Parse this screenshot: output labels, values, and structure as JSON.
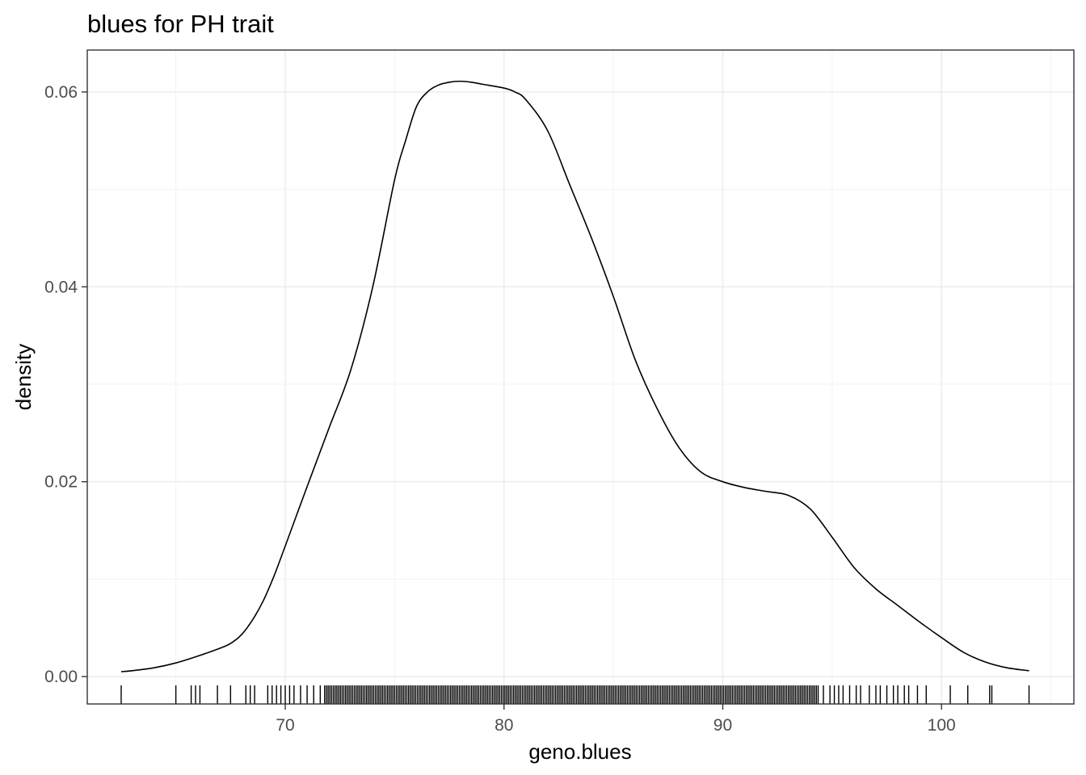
{
  "chart_data": {
    "type": "density",
    "title": "blues for PH trait",
    "xlabel": "geno.blues",
    "ylabel": "density",
    "xlim": [
      60.95,
      106.05
    ],
    "ylim": [
      -0.00281,
      0.0643
    ],
    "x_ticks": [
      70,
      80,
      90,
      100
    ],
    "x_tick_labels": [
      "70",
      "80",
      "90",
      "100"
    ],
    "y_ticks": [
      0.0,
      0.02,
      0.04,
      0.06
    ],
    "y_tick_labels": [
      "0.00",
      "0.02",
      "0.04",
      "0.06"
    ],
    "grid": true,
    "legend": "none",
    "line_color": "#000000",
    "density_curve": {
      "x": [
        62.5,
        63.0,
        64.0,
        65.0,
        66.0,
        67.0,
        67.5,
        68.0,
        68.5,
        69.0,
        69.5,
        70.0,
        71.0,
        72.0,
        73.0,
        74.0,
        75.0,
        75.5,
        76.0,
        76.5,
        77.0,
        77.5,
        78.0,
        78.5,
        79.0,
        80.0,
        80.5,
        81.0,
        82.0,
        83.0,
        84.0,
        85.0,
        86.0,
        87.0,
        88.0,
        89.0,
        90.0,
        91.0,
        92.0,
        93.0,
        94.0,
        95.0,
        96.0,
        97.0,
        98.0,
        99.0,
        100.0,
        101.0,
        102.0,
        103.0,
        104.0
      ],
      "y": [
        0.0005,
        0.0006,
        0.0009,
        0.0014,
        0.0021,
        0.0029,
        0.0034,
        0.0043,
        0.0058,
        0.0078,
        0.0104,
        0.0134,
        0.0195,
        0.0255,
        0.0315,
        0.04,
        0.051,
        0.055,
        0.0585,
        0.06,
        0.0607,
        0.061,
        0.0611,
        0.061,
        0.0608,
        0.0604,
        0.06,
        0.0592,
        0.056,
        0.0505,
        0.045,
        0.039,
        0.0325,
        0.0275,
        0.0235,
        0.021,
        0.02,
        0.0194,
        0.019,
        0.0186,
        0.0172,
        0.0143,
        0.0112,
        0.009,
        0.0073,
        0.0056,
        0.004,
        0.0025,
        0.0015,
        0.0009,
        0.0006
      ]
    },
    "rug_tails": [
      62.5,
      65.0,
      65.7,
      65.9,
      66.1,
      66.9,
      67.5,
      68.2,
      68.4,
      68.6,
      69.2,
      69.4,
      69.6,
      69.8,
      70.0,
      70.2,
      70.4,
      70.7,
      71.0,
      71.3,
      71.6,
      94.6,
      94.9,
      95.1,
      95.3,
      95.5,
      95.8,
      96.1,
      96.3,
      96.7,
      97.0,
      97.2,
      97.5,
      97.8,
      98.0,
      98.3,
      98.5,
      98.9,
      99.3,
      100.4,
      101.2,
      102.2,
      102.3,
      104.0
    ],
    "rug_dense_range": [
      71.8,
      94.4
    ]
  }
}
